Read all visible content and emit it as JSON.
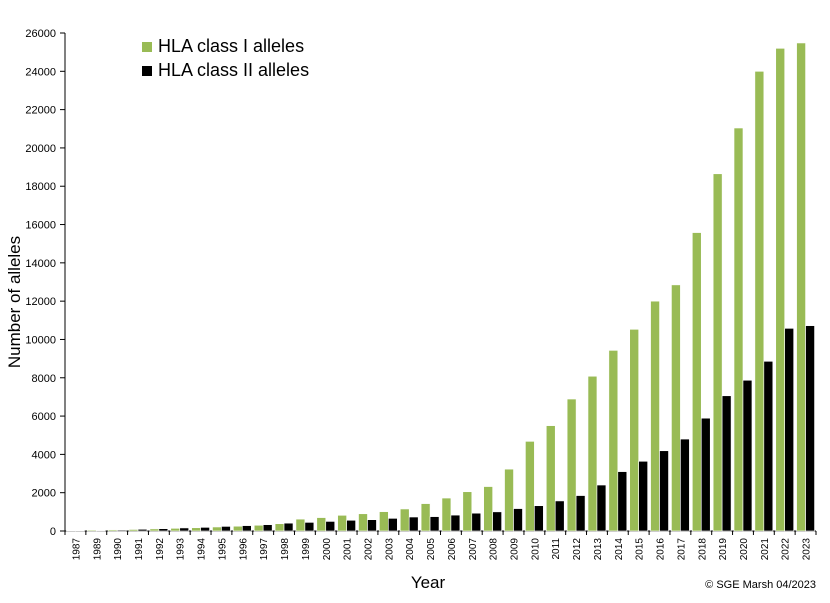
{
  "chart_data": {
    "type": "bar",
    "title": "",
    "xlabel": "Year",
    "ylabel": "Number of alleles",
    "ylim": [
      0,
      26000
    ],
    "yticks": [
      0,
      2000,
      4000,
      6000,
      8000,
      10000,
      12000,
      14000,
      16000,
      18000,
      20000,
      22000,
      24000,
      26000
    ],
    "grid": false,
    "legend_position": "top-left",
    "categories": [
      "1987",
      "1989",
      "1990",
      "1991",
      "1992",
      "1993",
      "1994",
      "1995",
      "1996",
      "1997",
      "1998",
      "1999",
      "2000",
      "2001",
      "2002",
      "2003",
      "2004",
      "2005",
      "2006",
      "2007",
      "2008",
      "2009",
      "2010",
      "2011",
      "2012",
      "2013",
      "2014",
      "2015",
      "2016",
      "2017",
      "2018",
      "2019",
      "2020",
      "2021",
      "2022",
      "2023"
    ],
    "series": [
      {
        "name": "HLA class I alleles",
        "color": "#99bb55",
        "values": [
          20,
          50,
          60,
          80,
          110,
          140,
          170,
          210,
          250,
          300,
          380,
          620,
          700,
          820,
          900,
          1010,
          1150,
          1430,
          1720,
          2050,
          2320,
          3230,
          4680,
          5500,
          6890,
          8080,
          9430,
          10530,
          12000,
          12850,
          15580,
          18650,
          21040,
          24000,
          25200,
          25480
        ]
      },
      {
        "name": "HLA class II alleles",
        "color": "#000000",
        "values": [
          20,
          30,
          50,
          90,
          120,
          160,
          190,
          240,
          280,
          330,
          410,
          450,
          500,
          560,
          590,
          660,
          730,
          750,
          830,
          930,
          1000,
          1170,
          1320,
          1570,
          1850,
          2400,
          3100,
          3640,
          4190,
          4800,
          5890,
          7060,
          7870,
          8860,
          10580,
          10720
        ]
      }
    ],
    "annotation": "© SGE Marsh 04/2023"
  }
}
